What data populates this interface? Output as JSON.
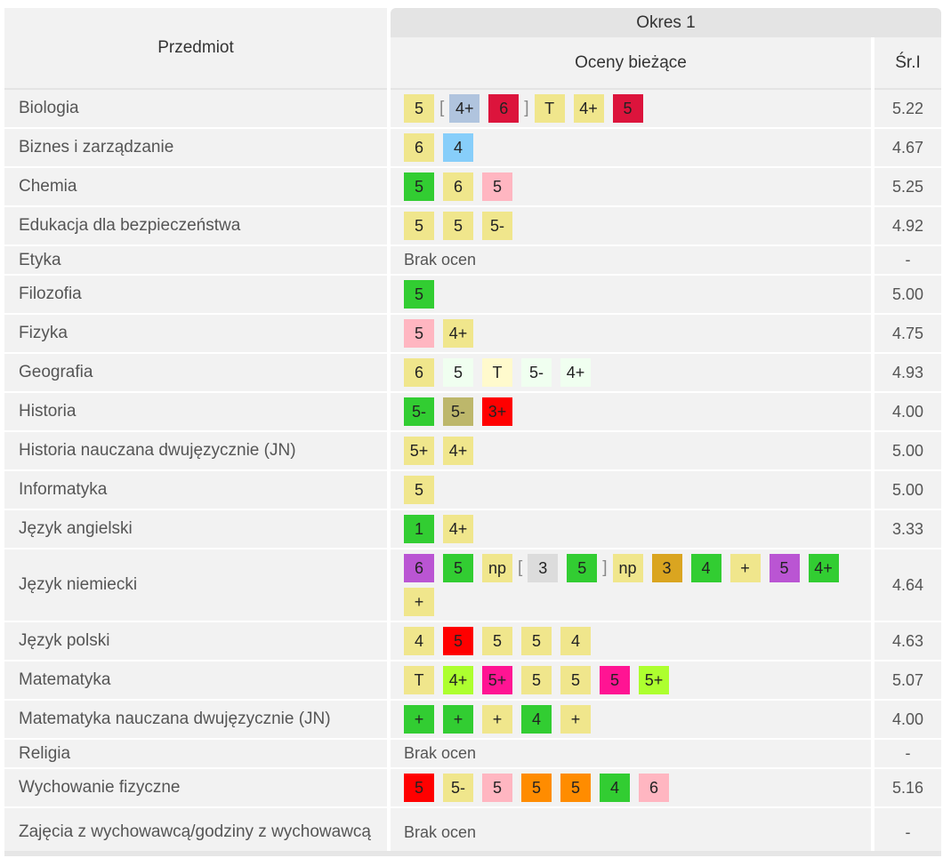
{
  "header": {
    "subject_col": "Przedmiot",
    "period": "Okres 1",
    "grades_col": "Oceny bieżące",
    "avg_col": "Śr.I"
  },
  "colors": {
    "yellow": "#f0e68c",
    "green": "#32cd32",
    "crimson": "#dc143c",
    "pink": "#ffb6c1",
    "lightblue": "#87cefa",
    "steel": "#b0c4de",
    "azure": "#f0fff0",
    "cream": "#fffacd",
    "khaki": "#bdb76b",
    "red": "#ff0000",
    "purple": "#ba55d3",
    "gray": "#dcdcdc",
    "goldenrod": "#daa520",
    "lime": "#adff2f",
    "magenta": "#ff1493",
    "orange": "#ff8c00"
  },
  "rows": [
    {
      "subject": "Biologia",
      "avg": "5.22",
      "grades": [
        {
          "v": "5",
          "c": "yellow"
        },
        {
          "t": "["
        },
        {
          "v": "4+",
          "c": "steel"
        },
        {
          "v": "6",
          "c": "crimson"
        },
        {
          "t": "]"
        },
        {
          "v": "T",
          "c": "yellow"
        },
        {
          "v": "4+",
          "c": "yellow"
        },
        {
          "v": "5",
          "c": "crimson"
        }
      ]
    },
    {
      "subject": "Biznes i zarządzanie",
      "avg": "4.67",
      "grades": [
        {
          "v": "6",
          "c": "yellow"
        },
        {
          "v": "4",
          "c": "lightblue"
        }
      ]
    },
    {
      "subject": "Chemia",
      "avg": "5.25",
      "grades": [
        {
          "v": "5",
          "c": "green"
        },
        {
          "v": "6",
          "c": "yellow"
        },
        {
          "v": "5",
          "c": "pink"
        }
      ]
    },
    {
      "subject": "Edukacja dla bezpieczeństwa",
      "avg": "4.92",
      "grades": [
        {
          "v": "5",
          "c": "yellow"
        },
        {
          "v": "5",
          "c": "yellow"
        },
        {
          "v": "5-",
          "c": "yellow"
        }
      ]
    },
    {
      "subject": "Etyka",
      "avg": "-",
      "none": "Brak ocen",
      "grades": []
    },
    {
      "subject": "Filozofia",
      "avg": "5.00",
      "grades": [
        {
          "v": "5",
          "c": "green"
        }
      ]
    },
    {
      "subject": "Fizyka",
      "avg": "4.75",
      "grades": [
        {
          "v": "5",
          "c": "pink"
        },
        {
          "v": "4+",
          "c": "yellow"
        }
      ]
    },
    {
      "subject": "Geografia",
      "avg": "4.93",
      "grades": [
        {
          "v": "6",
          "c": "yellow"
        },
        {
          "v": "5",
          "c": "azure"
        },
        {
          "v": "T",
          "c": "cream"
        },
        {
          "v": "5-",
          "c": "azure"
        },
        {
          "v": "4+",
          "c": "azure"
        }
      ]
    },
    {
      "subject": "Historia",
      "avg": "4.00",
      "grades": [
        {
          "v": "5-",
          "c": "green"
        },
        {
          "v": "5-",
          "c": "khaki"
        },
        {
          "v": "3+",
          "c": "red"
        }
      ]
    },
    {
      "subject": "Historia nauczana dwujęzycznie (JN)",
      "avg": "5.00",
      "grades": [
        {
          "v": "5+",
          "c": "yellow"
        },
        {
          "v": "4+",
          "c": "yellow"
        }
      ]
    },
    {
      "subject": "Informatyka",
      "avg": "5.00",
      "grades": [
        {
          "v": "5",
          "c": "yellow"
        }
      ]
    },
    {
      "subject": "Język angielski",
      "avg": "3.33",
      "grades": [
        {
          "v": "1",
          "c": "green"
        },
        {
          "v": "4+",
          "c": "yellow"
        }
      ]
    },
    {
      "subject": "Język niemiecki",
      "avg": "4.64",
      "grades": [
        {
          "v": "6",
          "c": "purple"
        },
        {
          "v": "5",
          "c": "green"
        },
        {
          "v": "np",
          "c": "yellow"
        },
        {
          "t": "["
        },
        {
          "v": "3",
          "c": "gray"
        },
        {
          "v": "5",
          "c": "green"
        },
        {
          "t": "]"
        },
        {
          "v": "np",
          "c": "yellow"
        },
        {
          "v": "3",
          "c": "goldenrod"
        },
        {
          "v": "4",
          "c": "green"
        },
        {
          "v": "+",
          "c": "yellow"
        },
        {
          "v": "5",
          "c": "purple"
        },
        {
          "v": "4+",
          "c": "green"
        },
        {
          "v": "+",
          "c": "yellow"
        }
      ]
    },
    {
      "subject": "Język polski",
      "avg": "4.63",
      "grades": [
        {
          "v": "4",
          "c": "yellow"
        },
        {
          "v": "5",
          "c": "red"
        },
        {
          "v": "5",
          "c": "yellow"
        },
        {
          "v": "5",
          "c": "yellow"
        },
        {
          "v": "4",
          "c": "yellow"
        }
      ]
    },
    {
      "subject": "Matematyka",
      "avg": "5.07",
      "grades": [
        {
          "v": "T",
          "c": "yellow"
        },
        {
          "v": "4+",
          "c": "lime"
        },
        {
          "v": "5+",
          "c": "magenta"
        },
        {
          "v": "5",
          "c": "yellow"
        },
        {
          "v": "5",
          "c": "yellow"
        },
        {
          "v": "5",
          "c": "magenta"
        },
        {
          "v": "5+",
          "c": "lime"
        }
      ]
    },
    {
      "subject": "Matematyka nauczana dwujęzycznie (JN)",
      "avg": "4.00",
      "grades": [
        {
          "v": "+",
          "c": "green"
        },
        {
          "v": "+",
          "c": "green"
        },
        {
          "v": "+",
          "c": "yellow"
        },
        {
          "v": "4",
          "c": "green"
        },
        {
          "v": "+",
          "c": "yellow"
        }
      ]
    },
    {
      "subject": "Religia",
      "avg": "-",
      "none": "Brak ocen",
      "grades": []
    },
    {
      "subject": "Wychowanie fizyczne",
      "avg": "5.16",
      "grades": [
        {
          "v": "5",
          "c": "red"
        },
        {
          "v": "5-",
          "c": "yellow"
        },
        {
          "v": "5",
          "c": "pink"
        },
        {
          "v": "5",
          "c": "orange"
        },
        {
          "v": "5",
          "c": "orange"
        },
        {
          "v": "4",
          "c": "green"
        },
        {
          "v": "6",
          "c": "pink"
        }
      ]
    },
    {
      "subject": "Zajęcia z wychowawcą/godziny z wychowawcą",
      "avg": "-",
      "none": "Brak ocen",
      "grades": []
    }
  ]
}
